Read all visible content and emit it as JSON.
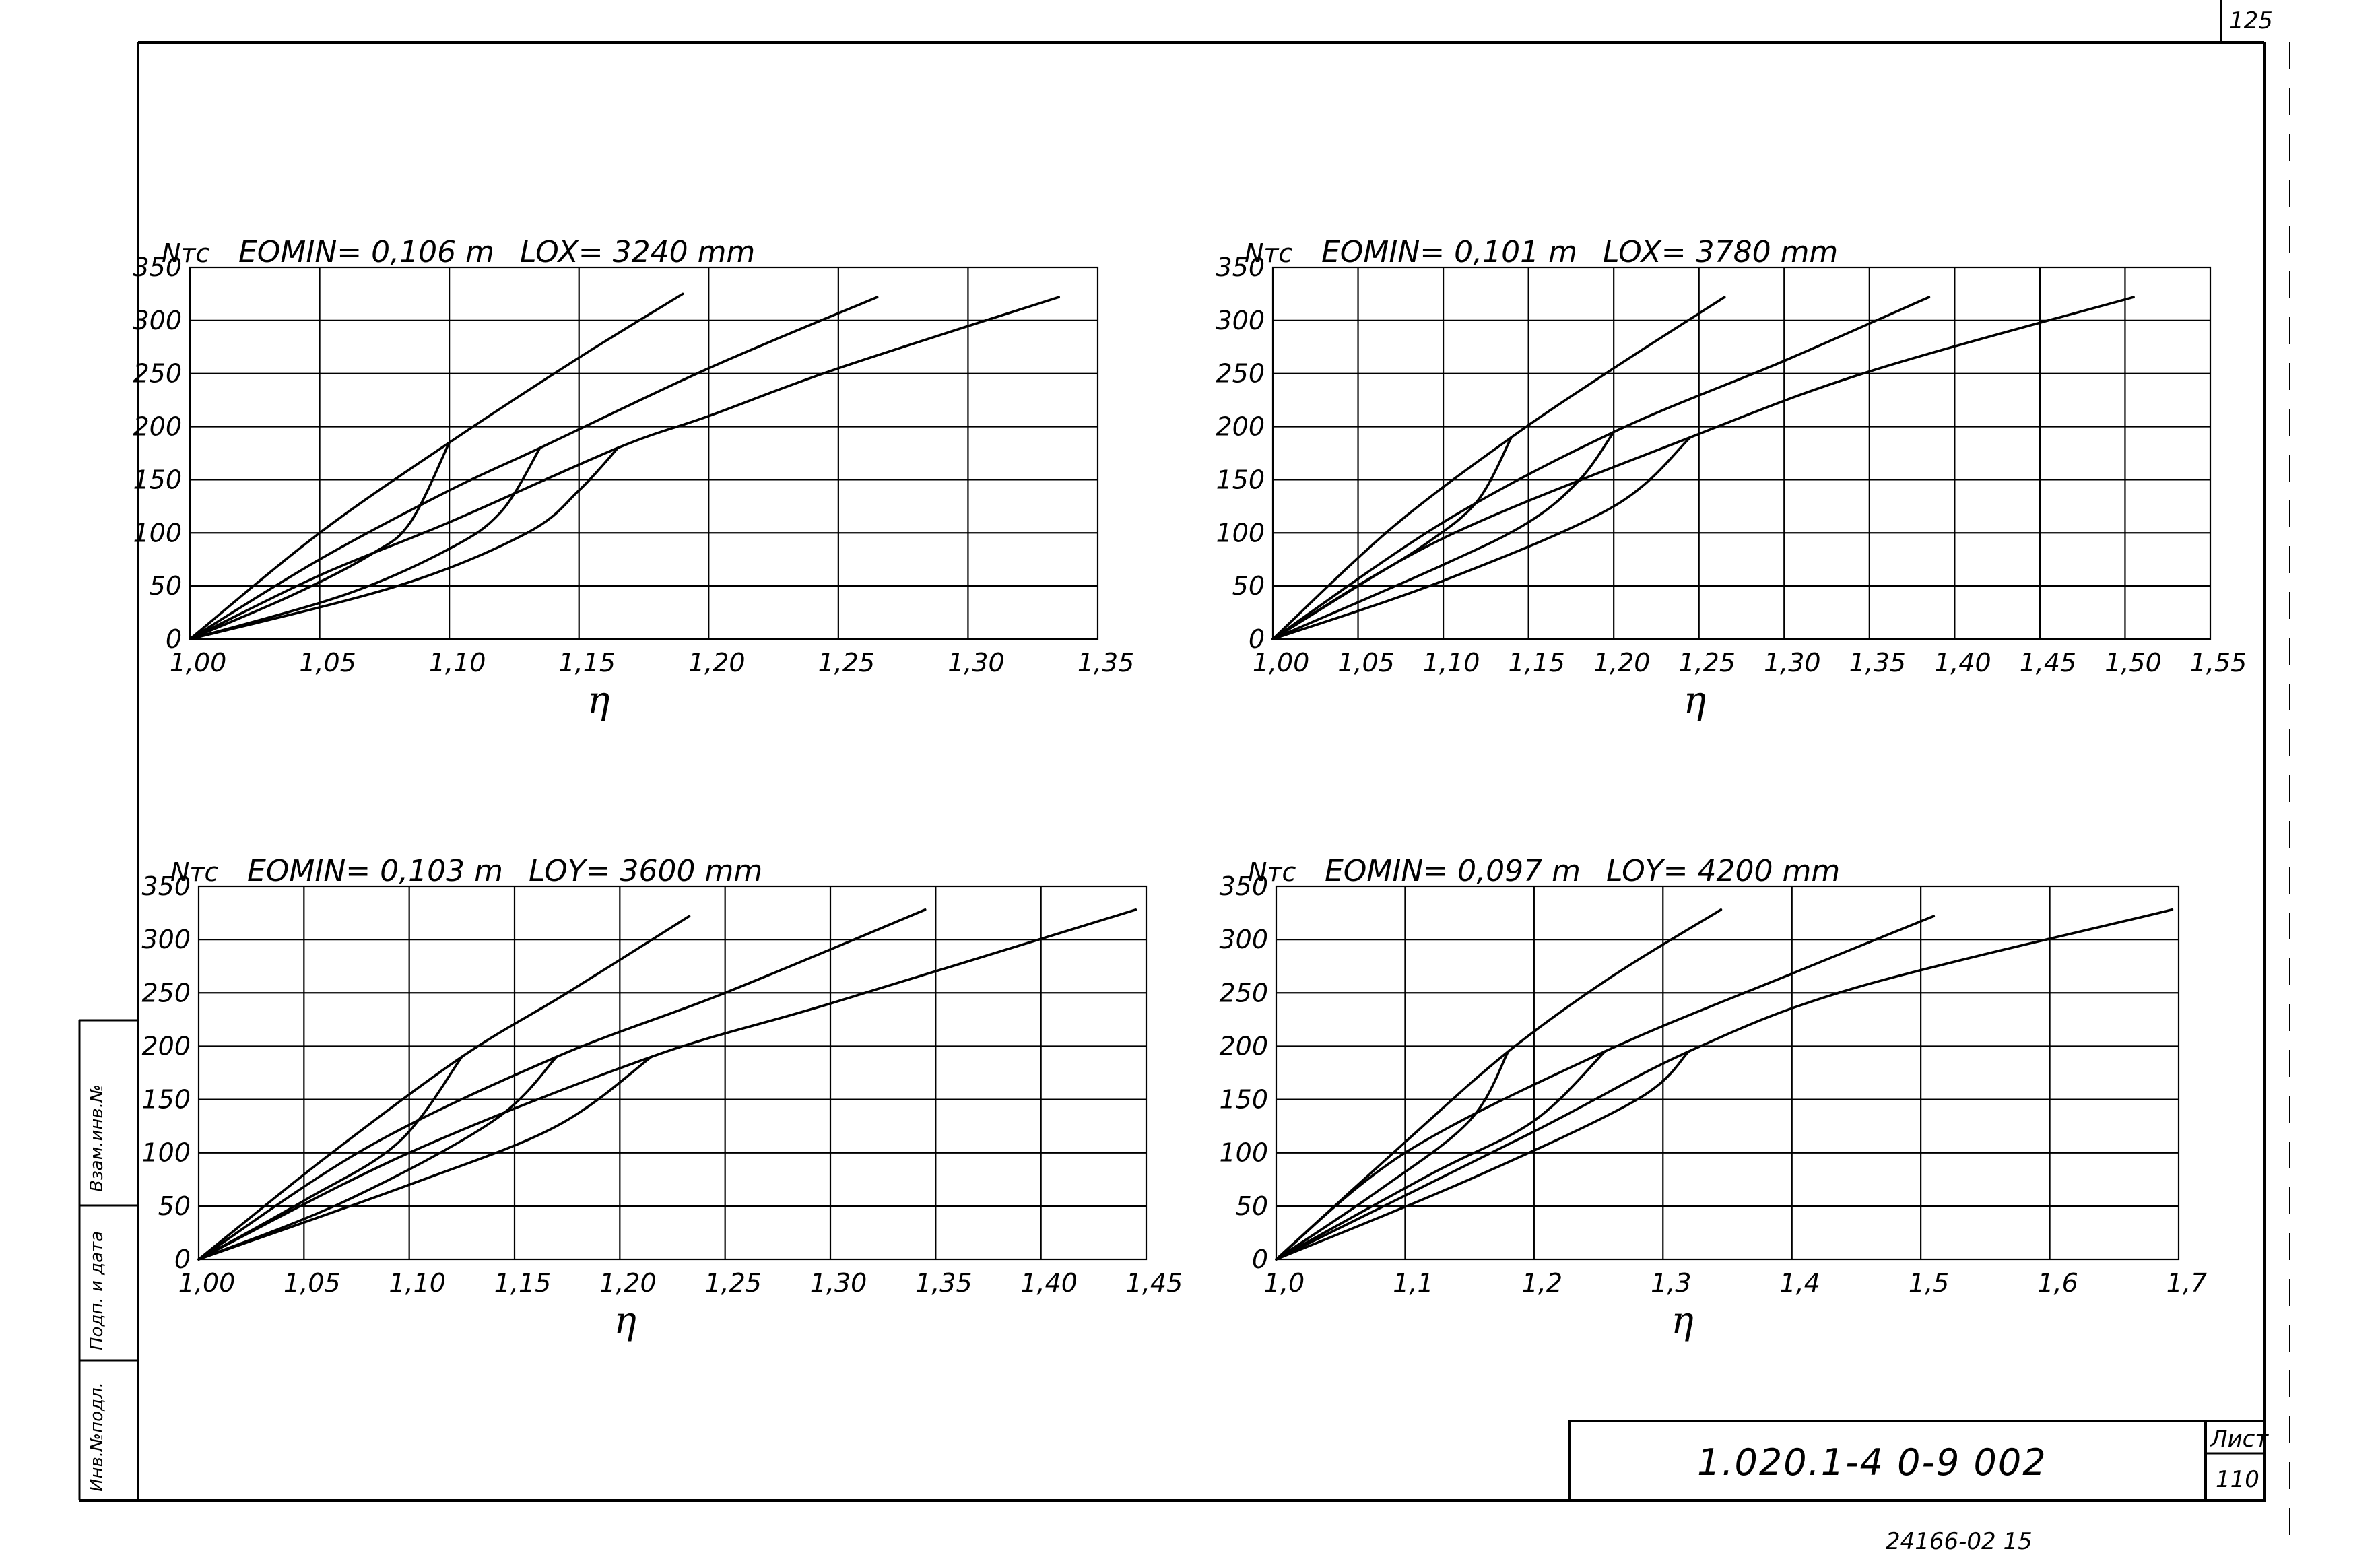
{
  "sheet": {
    "corner_page": "125",
    "document_code": "1.020.1-4  0-9  002",
    "sheet_label": "Лист",
    "sheet_number": "110",
    "footer_code": "24166-02  15",
    "side_labels": [
      "Инв.№подл.",
      "Подп. и дата",
      "Взам.инв.№"
    ]
  },
  "chart_data": [
    {
      "type": "line",
      "ylabel": "Nтс",
      "emin_label": "EOMIN= 0,106 m",
      "length_label": "LOX= 3240 mm",
      "xlabel": "η",
      "xlim": [
        1.0,
        1.35
      ],
      "ylim": [
        0,
        350
      ],
      "xticks": [
        1.0,
        1.05,
        1.1,
        1.15,
        1.2,
        1.25,
        1.3,
        1.35
      ],
      "xtick_labels": [
        "1,00",
        "1,05",
        "1,10",
        "1,15",
        "1,20",
        "1,25",
        "1,30",
        "1,35"
      ],
      "yticks": [
        0,
        50,
        100,
        150,
        200,
        250,
        300,
        350
      ],
      "ytick_labels": [
        "0",
        "50",
        "100",
        "150",
        "200",
        "250",
        "300",
        "350"
      ],
      "grid": true,
      "series": [
        {
          "points": [
            [
              1.0,
              0
            ],
            [
              1.05,
              100
            ],
            [
              1.1,
              185
            ],
            [
              1.15,
              265
            ],
            [
              1.19,
              325
            ]
          ]
        },
        {
          "points": [
            [
              1.0,
              0
            ],
            [
              1.05,
              75
            ],
            [
              1.1,
              140
            ],
            [
              1.135,
              180
            ],
            [
              1.2,
              255
            ],
            [
              1.265,
              322
            ]
          ]
        },
        {
          "points": [
            [
              1.0,
              0
            ],
            [
              1.05,
              60
            ],
            [
              1.1,
              110
            ],
            [
              1.165,
              180
            ],
            [
              1.2,
              210
            ],
            [
              1.25,
              255
            ],
            [
              1.335,
              322
            ]
          ]
        },
        {
          "points": [
            [
              1.0,
              0
            ],
            [
              1.04,
              42
            ],
            [
              1.07,
              80
            ],
            [
              1.085,
              110
            ],
            [
              1.1,
              185
            ]
          ]
        },
        {
          "points": [
            [
              1.0,
              0
            ],
            [
              1.06,
              42
            ],
            [
              1.1,
              85
            ],
            [
              1.12,
              120
            ],
            [
              1.135,
              180
            ]
          ]
        },
        {
          "points": [
            [
              1.0,
              0
            ],
            [
              1.08,
              50
            ],
            [
              1.13,
              100
            ],
            [
              1.15,
              140
            ],
            [
              1.165,
              180
            ]
          ]
        }
      ]
    },
    {
      "type": "line",
      "ylabel": "Nтс",
      "emin_label": "EOMIN= 0,101 m",
      "length_label": "LOX= 3780 mm",
      "xlabel": "η",
      "xlim": [
        1.0,
        1.55
      ],
      "ylim": [
        0,
        350
      ],
      "xticks": [
        1.0,
        1.05,
        1.1,
        1.15,
        1.2,
        1.25,
        1.3,
        1.35,
        1.4,
        1.45,
        1.5,
        1.55
      ],
      "xtick_labels": [
        "1,00",
        "1,05",
        "1,10",
        "1,15",
        "1,20",
        "1,25",
        "1,30",
        "1,35",
        "1,40",
        "1,45",
        "1,50",
        "1,55"
      ],
      "yticks": [
        0,
        50,
        100,
        150,
        200,
        250,
        300,
        350
      ],
      "ytick_labels": [
        "0",
        "50",
        "100",
        "150",
        "200",
        "250",
        "300",
        "350"
      ],
      "grid": true,
      "series": [
        {
          "points": [
            [
              1.0,
              0
            ],
            [
              1.07,
              105
            ],
            [
              1.14,
              190
            ],
            [
              1.2,
              255
            ],
            [
              1.265,
              322
            ]
          ]
        },
        {
          "points": [
            [
              1.0,
              0
            ],
            [
              1.1,
              110
            ],
            [
              1.2,
              195
            ],
            [
              1.3,
              262
            ],
            [
              1.385,
              322
            ]
          ]
        },
        {
          "points": [
            [
              1.0,
              0
            ],
            [
              1.1,
              95
            ],
            [
              1.245,
              190
            ],
            [
              1.35,
              252
            ],
            [
              1.505,
              322
            ]
          ]
        },
        {
          "points": [
            [
              1.0,
              0
            ],
            [
              1.05,
              50
            ],
            [
              1.09,
              90
            ],
            [
              1.12,
              130
            ],
            [
              1.14,
              190
            ]
          ]
        },
        {
          "points": [
            [
              1.0,
              0
            ],
            [
              1.1,
              70
            ],
            [
              1.15,
              110
            ],
            [
              1.18,
              150
            ],
            [
              1.2,
              195
            ]
          ]
        },
        {
          "points": [
            [
              1.0,
              0
            ],
            [
              1.1,
              55
            ],
            [
              1.2,
              125
            ],
            [
              1.245,
              190
            ]
          ]
        }
      ]
    },
    {
      "type": "line",
      "ylabel": "Nтс",
      "emin_label": "EOMIN= 0,103 m",
      "length_label": "LOY= 3600 mm",
      "xlabel": "η",
      "xlim": [
        1.0,
        1.45
      ],
      "ylim": [
        0,
        350
      ],
      "xticks": [
        1.0,
        1.05,
        1.1,
        1.15,
        1.2,
        1.25,
        1.3,
        1.35,
        1.4,
        1.45
      ],
      "xtick_labels": [
        "1,00",
        "1,05",
        "1,10",
        "1,15",
        "1,20",
        "1,25",
        "1,30",
        "1,35",
        "1,40",
        "1,45"
      ],
      "yticks": [
        0,
        50,
        100,
        150,
        200,
        250,
        300,
        350
      ],
      "ytick_labels": [
        "0",
        "50",
        "100",
        "150",
        "200",
        "250",
        "300",
        "350"
      ],
      "grid": true,
      "series": [
        {
          "points": [
            [
              1.0,
              0
            ],
            [
              1.06,
              95
            ],
            [
              1.125,
              190
            ],
            [
              1.175,
              250
            ],
            [
              1.233,
              322
            ]
          ]
        },
        {
          "points": [
            [
              1.0,
              0
            ],
            [
              1.08,
              105
            ],
            [
              1.17,
              190
            ],
            [
              1.25,
              250
            ],
            [
              1.345,
              328
            ]
          ]
        },
        {
          "points": [
            [
              1.0,
              0
            ],
            [
              1.1,
              100
            ],
            [
              1.215,
              190
            ],
            [
              1.3,
              240
            ],
            [
              1.445,
              328
            ]
          ]
        },
        {
          "points": [
            [
              1.0,
              0
            ],
            [
              1.05,
              55
            ],
            [
              1.095,
              110
            ],
            [
              1.125,
              190
            ]
          ]
        },
        {
          "points": [
            [
              1.0,
              0
            ],
            [
              1.07,
              55
            ],
            [
              1.14,
              130
            ],
            [
              1.17,
              190
            ]
          ]
        },
        {
          "points": [
            [
              1.0,
              0
            ],
            [
              1.1,
              70
            ],
            [
              1.17,
              125
            ],
            [
              1.215,
              190
            ]
          ]
        }
      ]
    },
    {
      "type": "line",
      "ylabel": "Nтс",
      "emin_label": "EOMIN= 0,097 m",
      "length_label": "LOY= 4200 mm",
      "xlabel": "η",
      "xlim": [
        1.0,
        1.7
      ],
      "ylim": [
        0,
        350
      ],
      "xticks": [
        1.0,
        1.1,
        1.2,
        1.3,
        1.4,
        1.5,
        1.6,
        1.7
      ],
      "xtick_labels": [
        "1,0",
        "1,1",
        "1,2",
        "1,3",
        "1,4",
        "1,5",
        "1,6",
        "1,7"
      ],
      "yticks": [
        0,
        50,
        100,
        150,
        200,
        250,
        300,
        350
      ],
      "ytick_labels": [
        "0",
        "50",
        "100",
        "150",
        "200",
        "250",
        "300",
        "350"
      ],
      "grid": true,
      "series": [
        {
          "points": [
            [
              1.0,
              0
            ],
            [
              1.1,
              110
            ],
            [
              1.18,
              195
            ],
            [
              1.26,
              265
            ],
            [
              1.345,
              328
            ]
          ]
        },
        {
          "points": [
            [
              1.0,
              0
            ],
            [
              1.1,
              100
            ],
            [
              1.255,
              195
            ],
            [
              1.4,
              268
            ],
            [
              1.51,
              322
            ]
          ]
        },
        {
          "points": [
            [
              1.0,
              0
            ],
            [
              1.2,
              120
            ],
            [
              1.32,
              195
            ],
            [
              1.45,
              255
            ],
            [
              1.695,
              328
            ]
          ]
        },
        {
          "points": [
            [
              1.0,
              0
            ],
            [
              1.08,
              65
            ],
            [
              1.15,
              130
            ],
            [
              1.18,
              195
            ]
          ]
        },
        {
          "points": [
            [
              1.0,
              0
            ],
            [
              1.12,
              80
            ],
            [
              1.2,
              130
            ],
            [
              1.255,
              195
            ]
          ]
        },
        {
          "points": [
            [
              1.0,
              0
            ],
            [
              1.15,
              75
            ],
            [
              1.28,
              150
            ],
            [
              1.32,
              195
            ]
          ]
        }
      ]
    }
  ]
}
